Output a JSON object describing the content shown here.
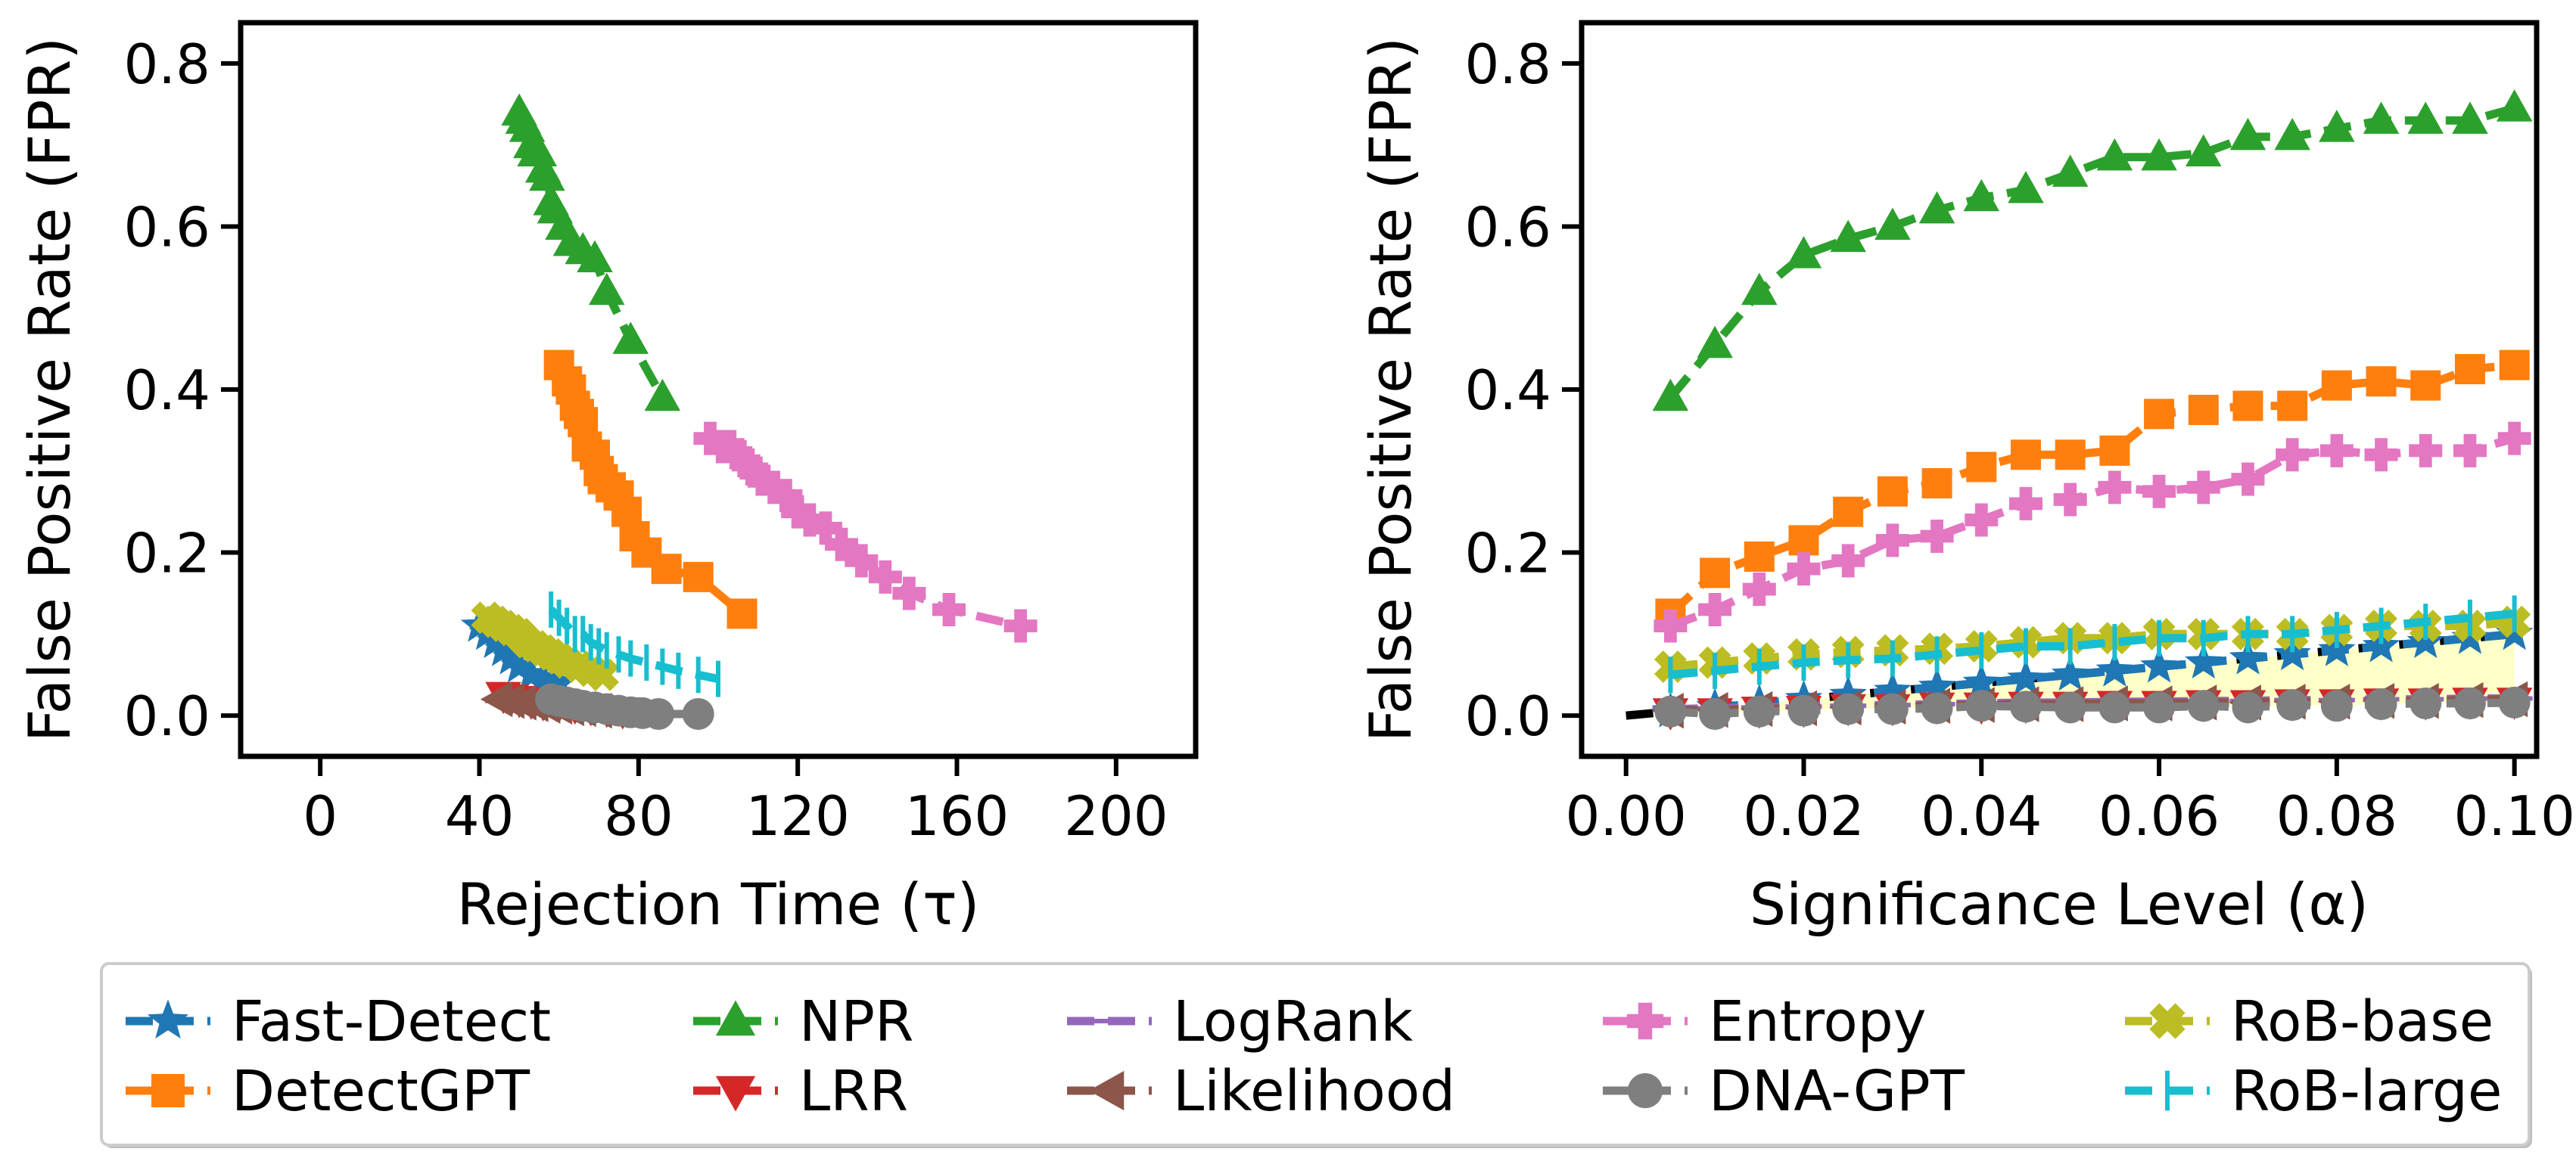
{
  "chart_data": [
    {
      "type": "line",
      "id": "left",
      "xlabel": "Rejection Time (τ)",
      "ylabel": "False Positive Rate (FPR)",
      "xlim": [
        -20,
        220
      ],
      "ylim": [
        -0.05,
        0.85
      ],
      "xticks": [
        0,
        40,
        80,
        120,
        160,
        200
      ],
      "xtick_labels": [
        "0",
        "40",
        "80",
        "120",
        "160",
        "200"
      ],
      "yticks": [
        0.0,
        0.2,
        0.4,
        0.6,
        0.8
      ],
      "ytick_labels": [
        "0.0",
        "0.2",
        "0.4",
        "0.6",
        "0.8"
      ],
      "series": [
        {
          "name": "Fast-Detect",
          "points": [
            [
              40,
              0.11
            ],
            [
              42,
              0.1
            ],
            [
              44,
              0.09
            ],
            [
              46,
              0.08
            ],
            [
              48,
              0.07
            ],
            [
              50,
              0.06
            ],
            [
              53,
              0.05
            ],
            [
              56,
              0.045
            ],
            [
              60,
              0.04
            ]
          ]
        },
        {
          "name": "DetectGPT",
          "points": [
            [
              60,
              0.43
            ],
            [
              62,
              0.41
            ],
            [
              63,
              0.4
            ],
            [
              64,
              0.38
            ],
            [
              65,
              0.37
            ],
            [
              66,
              0.36
            ],
            [
              67,
              0.33
            ],
            [
              69,
              0.32
            ],
            [
              70,
              0.3
            ],
            [
              71,
              0.29
            ],
            [
              73,
              0.28
            ],
            [
              75,
              0.27
            ],
            [
              77,
              0.25
            ],
            [
              79,
              0.22
            ],
            [
              82,
              0.2
            ],
            [
              87,
              0.18
            ],
            [
              95,
              0.17
            ],
            [
              106,
              0.125
            ]
          ]
        },
        {
          "name": "NPR",
          "points": [
            [
              50,
              0.74
            ],
            [
              51,
              0.73
            ],
            [
              52,
              0.72
            ],
            [
              53,
              0.7
            ],
            [
              54,
              0.69
            ],
            [
              55,
              0.69
            ],
            [
              56,
              0.67
            ],
            [
              57,
              0.66
            ],
            [
              58,
              0.63
            ],
            [
              59,
              0.62
            ],
            [
              61,
              0.6
            ],
            [
              63,
              0.58
            ],
            [
              66,
              0.57
            ],
            [
              69,
              0.56
            ],
            [
              72,
              0.52
            ],
            [
              78,
              0.46
            ],
            [
              86,
              0.39
            ]
          ]
        },
        {
          "name": "LRR",
          "points": [
            [
              46,
              0.025
            ],
            [
              48,
              0.022
            ],
            [
              50,
              0.02
            ],
            [
              53,
              0.018
            ],
            [
              56,
              0.016
            ],
            [
              60,
              0.014
            ],
            [
              64,
              0.012
            ],
            [
              68,
              0.01
            ],
            [
              72,
              0.008
            ],
            [
              76,
              0.006
            ]
          ]
        },
        {
          "name": "LogRank",
          "points": [
            [
              46,
              0.018
            ],
            [
              49,
              0.016
            ],
            [
              52,
              0.014
            ],
            [
              55,
              0.012
            ],
            [
              58,
              0.011
            ],
            [
              61,
              0.009
            ],
            [
              64,
              0.008
            ],
            [
              68,
              0.007
            ],
            [
              72,
              0.005
            ]
          ]
        },
        {
          "name": "Likelihood",
          "points": [
            [
              45,
              0.02
            ],
            [
              48,
              0.018
            ],
            [
              51,
              0.016
            ],
            [
              54,
              0.014
            ],
            [
              57,
              0.012
            ],
            [
              60,
              0.011
            ],
            [
              63,
              0.009
            ],
            [
              66,
              0.008
            ],
            [
              70,
              0.006
            ]
          ]
        },
        {
          "name": "Entropy",
          "points": [
            [
              98,
              0.34
            ],
            [
              101,
              0.33
            ],
            [
              103,
              0.33
            ],
            [
              105,
              0.32
            ],
            [
              107,
              0.31
            ],
            [
              109,
              0.3
            ],
            [
              111,
              0.29
            ],
            [
              114,
              0.28
            ],
            [
              117,
              0.27
            ],
            [
              120,
              0.25
            ],
            [
              123,
              0.24
            ],
            [
              127,
              0.23
            ],
            [
              131,
              0.21
            ],
            [
              136,
              0.19
            ],
            [
              142,
              0.17
            ],
            [
              148,
              0.15
            ],
            [
              158,
              0.13
            ],
            [
              176,
              0.11
            ]
          ]
        },
        {
          "name": "DNA-GPT",
          "points": [
            [
              58,
              0.02
            ],
            [
              60,
              0.018
            ],
            [
              62,
              0.016
            ],
            [
              64,
              0.014
            ],
            [
              66,
              0.012
            ],
            [
              69,
              0.01
            ],
            [
              72,
              0.008
            ],
            [
              75,
              0.006
            ],
            [
              78,
              0.004
            ],
            [
              81,
              0.003
            ],
            [
              85,
              0.002
            ],
            [
              95,
              0.002
            ]
          ]
        },
        {
          "name": "RoB-base",
          "points": [
            [
              42,
              0.12
            ],
            [
              44,
              0.115
            ],
            [
              46,
              0.11
            ],
            [
              48,
              0.105
            ],
            [
              50,
              0.1
            ],
            [
              52,
              0.09
            ],
            [
              54,
              0.085
            ],
            [
              56,
              0.08
            ],
            [
              58,
              0.075
            ],
            [
              60,
              0.07
            ],
            [
              62,
              0.065
            ],
            [
              65,
              0.06
            ],
            [
              68,
              0.055
            ],
            [
              71,
              0.05
            ]
          ]
        },
        {
          "name": "RoB-large",
          "points": [
            [
              58,
              0.13
            ],
            [
              60,
              0.12
            ],
            [
              62,
              0.11
            ],
            [
              64,
              0.1
            ],
            [
              66,
              0.1
            ],
            [
              68,
              0.09
            ],
            [
              70,
              0.085
            ],
            [
              72,
              0.08
            ],
            [
              75,
              0.075
            ],
            [
              78,
              0.07
            ],
            [
              82,
              0.065
            ],
            [
              86,
              0.06
            ],
            [
              90,
              0.055
            ],
            [
              95,
              0.05
            ],
            [
              100,
              0.045
            ]
          ]
        }
      ]
    },
    {
      "type": "line",
      "id": "right",
      "xlabel": "Significance Level (α)",
      "ylabel": "False Positive Rate (FPR)",
      "xlim": [
        -0.005,
        0.1025
      ],
      "ylim": [
        -0.05,
        0.85
      ],
      "xticks": [
        0.0,
        0.02,
        0.04,
        0.06,
        0.08,
        0.1
      ],
      "xtick_labels": [
        "0.00",
        "0.02",
        "0.04",
        "0.06",
        "0.08",
        "0.10"
      ],
      "yticks": [
        0.0,
        0.2,
        0.4,
        0.6,
        0.8
      ],
      "ytick_labels": [
        "0.0",
        "0.2",
        "0.4",
        "0.6",
        "0.8"
      ],
      "alpha_grid": [
        0.005,
        0.01,
        0.015,
        0.02,
        0.025,
        0.03,
        0.035,
        0.04,
        0.045,
        0.05,
        0.055,
        0.06,
        0.065,
        0.07,
        0.075,
        0.08,
        0.085,
        0.09,
        0.095,
        0.1
      ],
      "reference_line": {
        "from": [
          0,
          0
        ],
        "to": [
          0.1,
          0.1
        ],
        "style": "dashed",
        "color": "#000000"
      },
      "series": [
        {
          "name": "Fast-Detect",
          "values": [
            0.005,
            0.01,
            0.015,
            0.02,
            0.025,
            0.03,
            0.035,
            0.04,
            0.045,
            0.05,
            0.055,
            0.06,
            0.065,
            0.07,
            0.075,
            0.08,
            0.085,
            0.09,
            0.095,
            0.1
          ]
        },
        {
          "name": "DetectGPT",
          "values": [
            0.125,
            0.175,
            0.195,
            0.215,
            0.25,
            0.275,
            0.285,
            0.305,
            0.32,
            0.32,
            0.325,
            0.37,
            0.375,
            0.38,
            0.38,
            0.405,
            0.41,
            0.405,
            0.425,
            0.43
          ]
        },
        {
          "name": "NPR",
          "values": [
            0.39,
            0.455,
            0.52,
            0.565,
            0.585,
            0.6,
            0.62,
            0.635,
            0.645,
            0.665,
            0.685,
            0.685,
            0.69,
            0.71,
            0.71,
            0.72,
            0.73,
            0.73,
            0.73,
            0.745
          ]
        },
        {
          "name": "LRR",
          "values": [
            0.005,
            0.005,
            0.007,
            0.008,
            0.01,
            0.01,
            0.012,
            0.012,
            0.013,
            0.013,
            0.014,
            0.014,
            0.015,
            0.015,
            0.016,
            0.016,
            0.017,
            0.017,
            0.018,
            0.018
          ]
        },
        {
          "name": "LogRank",
          "values": [
            0.008,
            0.009,
            0.01,
            0.011,
            0.012,
            0.013,
            0.014,
            0.015,
            0.016,
            0.016,
            0.017,
            0.017,
            0.018,
            0.018,
            0.019,
            0.019,
            0.02,
            0.02,
            0.021,
            0.021
          ]
        },
        {
          "name": "Likelihood",
          "values": [
            0.006,
            0.007,
            0.008,
            0.009,
            0.01,
            0.011,
            0.012,
            0.013,
            0.014,
            0.014,
            0.015,
            0.015,
            0.016,
            0.016,
            0.017,
            0.017,
            0.018,
            0.018,
            0.019,
            0.02
          ]
        },
        {
          "name": "Entropy",
          "values": [
            0.11,
            0.13,
            0.155,
            0.18,
            0.19,
            0.215,
            0.22,
            0.24,
            0.26,
            0.265,
            0.28,
            0.275,
            0.28,
            0.29,
            0.32,
            0.325,
            0.32,
            0.325,
            0.325,
            0.34
          ]
        },
        {
          "name": "DNA-GPT",
          "values": [
            0.005,
            0.002,
            0.005,
            0.006,
            0.008,
            0.008,
            0.009,
            0.012,
            0.011,
            0.01,
            0.01,
            0.01,
            0.012,
            0.01,
            0.013,
            0.012,
            0.014,
            0.015,
            0.015,
            0.016
          ]
        },
        {
          "name": "RoB-base",
          "values": [
            0.06,
            0.065,
            0.07,
            0.075,
            0.078,
            0.08,
            0.082,
            0.085,
            0.09,
            0.095,
            0.095,
            0.1,
            0.1,
            0.1,
            0.1,
            0.105,
            0.11,
            0.11,
            0.11,
            0.115
          ]
        },
        {
          "name": "RoB-large",
          "values": [
            0.05,
            0.055,
            0.06,
            0.065,
            0.068,
            0.07,
            0.075,
            0.08,
            0.085,
            0.085,
            0.09,
            0.095,
            0.095,
            0.1,
            0.1,
            0.105,
            0.11,
            0.115,
            0.12,
            0.125
          ]
        }
      ]
    }
  ],
  "styles": [
    {
      "name": "Fast-Detect",
      "color": "#1f77b4",
      "marker": "star"
    },
    {
      "name": "DetectGPT",
      "color": "#ff7f0e",
      "marker": "square"
    },
    {
      "name": "NPR",
      "color": "#2ca02c",
      "marker": "triangle-up"
    },
    {
      "name": "LRR",
      "color": "#d62728",
      "marker": "triangle-down"
    },
    {
      "name": "LogRank",
      "color": "#9467bd",
      "marker": "hline"
    },
    {
      "name": "Likelihood",
      "color": "#8c564b",
      "marker": "triangle-left"
    },
    {
      "name": "Entropy",
      "color": "#e377c2",
      "marker": "plus"
    },
    {
      "name": "DNA-GPT",
      "color": "#7f7f7f",
      "marker": "circle"
    },
    {
      "name": "RoB-base",
      "color": "#bcbd22",
      "marker": "cross"
    },
    {
      "name": "RoB-large",
      "color": "#17becf",
      "marker": "vline"
    }
  ],
  "legend": {
    "placement": "bottom-center",
    "columns": [
      [
        "Fast-Detect",
        "DetectGPT"
      ],
      [
        "NPR",
        "LRR"
      ],
      [
        "LogRank",
        "Likelihood"
      ],
      [
        "Entropy",
        "DNA-GPT"
      ],
      [
        "RoB-base",
        "RoB-large"
      ]
    ]
  },
  "colors": {
    "shade": "#ffffc8",
    "axis": "#000000",
    "background": "#ffffff"
  }
}
